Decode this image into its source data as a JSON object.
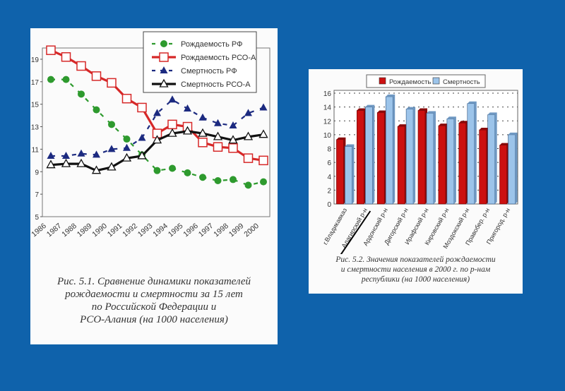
{
  "background_color": "#0f62ab",
  "chart_data": [
    {
      "type": "line",
      "x": [
        1986,
        1987,
        1988,
        1989,
        1990,
        1991,
        1992,
        1993,
        1994,
        1995,
        1996,
        1997,
        1998,
        1999,
        2000
      ],
      "series": [
        {
          "name": "Рождаемость РФ",
          "color": "#2e9a2e",
          "marker": "circle",
          "line": "dashed",
          "values": [
            17.2,
            17.2,
            15.9,
            14.5,
            13.2,
            11.9,
            10.5,
            9.1,
            9.3,
            8.9,
            8.5,
            8.2,
            8.3,
            7.8,
            8.1
          ]
        },
        {
          "name": "Рождаемость РСО-А",
          "color": "#d62828",
          "marker": "square",
          "line": "solid",
          "values": [
            19.8,
            19.2,
            18.4,
            17.5,
            16.9,
            15.5,
            14.7,
            12.4,
            13.2,
            13.0,
            11.6,
            11.2,
            11.1,
            10.2,
            10.0
          ]
        },
        {
          "name": "Смертность РФ",
          "color": "#1c2a80",
          "marker": "triangle",
          "line": "dashed",
          "values": [
            10.4,
            10.4,
            10.6,
            10.5,
            11.0,
            11.1,
            12.0,
            14.2,
            15.4,
            14.6,
            13.8,
            13.3,
            13.1,
            14.2,
            14.7
          ]
        },
        {
          "name": "Смертность РСО-А",
          "color": "#111111",
          "marker": "triangle-open",
          "line": "solid",
          "values": [
            9.6,
            9.7,
            9.7,
            9.1,
            9.4,
            10.2,
            10.4,
            11.8,
            12.4,
            12.6,
            12.4,
            12.1,
            11.8,
            12.1,
            12.3
          ]
        }
      ],
      "yticks": [
        5,
        7,
        9,
        11,
        13,
        15,
        17,
        19
      ],
      "ylim": [
        5,
        20
      ],
      "legend": "top-right",
      "grid": false,
      "caption": [
        "Рис. 5.1. Сравнение динамики показателей",
        "рождаемости и смертности за 15 лет",
        "по Российской Федерации и",
        "РСО-Алания (на 1000 населения)"
      ]
    },
    {
      "type": "bar",
      "categories": [
        "г.Владикавказ",
        "Алагирский р-н",
        "Ардонский р-н",
        "Дигорский р-н",
        "Ирафский р-н",
        "Кировский р-н",
        "Моздокский р-н",
        "Правобер. р-н",
        "Пригород. р-н"
      ],
      "series": [
        {
          "name": "Рождаемость",
          "color": "#cc1010",
          "values": [
            9.3,
            13.5,
            13.2,
            11.2,
            13.5,
            11.3,
            11.7,
            10.7,
            8.5
          ]
        },
        {
          "name": "Смертность",
          "color": "#9cc4ea",
          "values": [
            8.3,
            14.0,
            15.5,
            13.7,
            13.1,
            12.3,
            14.5,
            12.9,
            10.0
          ]
        }
      ],
      "yticks": [
        0,
        2,
        4,
        6,
        8,
        10,
        12,
        14,
        16
      ],
      "ylim": [
        0,
        16
      ],
      "legend": "top",
      "grid": true,
      "caption": [
        "Рис. 5.2. Значения показателей рождаемости",
        "и смертности населения в 2000 г. по р-нам",
        "республики (на 1000 населения)"
      ]
    }
  ]
}
